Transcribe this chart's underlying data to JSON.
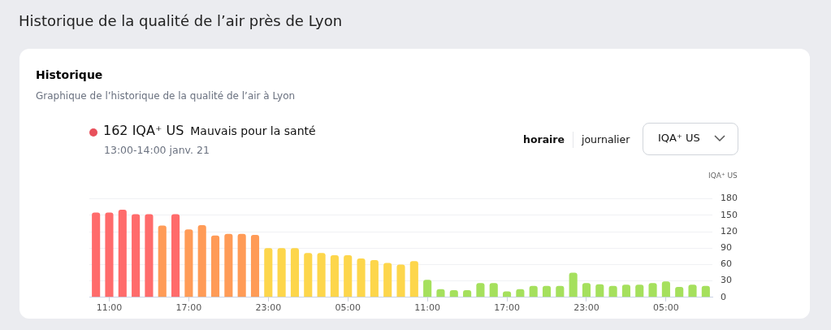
{
  "chart_data": {
    "type": "bar",
    "title": "Historique de la qualité de l’air près de Lyon",
    "subtitle": "Historique",
    "ylabel": "IQA⁺ US",
    "annotations": [
      "Graphique de l’historique de la qualité de l’air à Lyon",
      "162 IQA⁺ US",
      "Mauvais pour la santé",
      "13:00-14:00 janv. 21",
      "horaire",
      "journalier",
      "IQA⁺ US"
    ],
    "categories": [
      null,
      "11:00",
      null,
      null,
      null,
      null,
      null,
      "17:00",
      null,
      null,
      null,
      null,
      null,
      "23:00",
      null,
      null,
      null,
      null,
      null,
      "05:00",
      null,
      null,
      null,
      null,
      null,
      "11:00",
      null,
      null,
      null,
      null,
      null,
      "17:00",
      null,
      null,
      null,
      null,
      null,
      "23:00",
      null,
      null,
      null,
      null,
      null,
      "05:00",
      null,
      null,
      null
    ],
    "values": [
      155,
      155,
      160,
      152,
      152,
      131,
      152,
      124,
      132,
      113,
      116,
      116,
      114,
      90,
      90,
      90,
      81,
      81,
      77,
      77,
      71,
      68,
      63,
      60,
      66,
      32,
      15,
      13,
      13,
      26,
      26,
      11,
      15,
      21,
      21,
      21,
      45,
      26,
      24,
      21,
      23,
      23,
      26,
      29,
      19,
      23,
      21
    ],
    "colors": [
      "#ff6b6b",
      "#ff6b6b",
      "#ff6b6b",
      "#ff6b6b",
      "#ff6b6b",
      "#ff9b57",
      "#ff6b6b",
      "#ff9b57",
      "#ff9b57",
      "#ff9b57",
      "#ff9b57",
      "#ff9b57",
      "#ff9b57",
      "#fdd64b",
      "#fdd64b",
      "#fdd64b",
      "#fdd64b",
      "#fdd64b",
      "#fdd64b",
      "#fdd64b",
      "#fdd64b",
      "#fdd64b",
      "#fdd64b",
      "#fdd64b",
      "#fdd64b",
      "#a5e05d",
      "#a5e05d",
      "#a5e05d",
      "#a5e05d",
      "#a5e05d",
      "#a5e05d",
      "#a5e05d",
      "#a5e05d",
      "#a5e05d",
      "#a5e05d",
      "#a5e05d",
      "#a5e05d",
      "#a5e05d",
      "#a5e05d",
      "#a5e05d",
      "#a5e05d",
      "#a5e05d",
      "#a5e05d",
      "#a5e05d",
      "#a5e05d",
      "#a5e05d",
      "#a5e05d"
    ],
    "ylim": [
      0,
      180
    ],
    "yticks": [
      0,
      30,
      60,
      90,
      120,
      150,
      180
    ],
    "grid": "y"
  }
}
